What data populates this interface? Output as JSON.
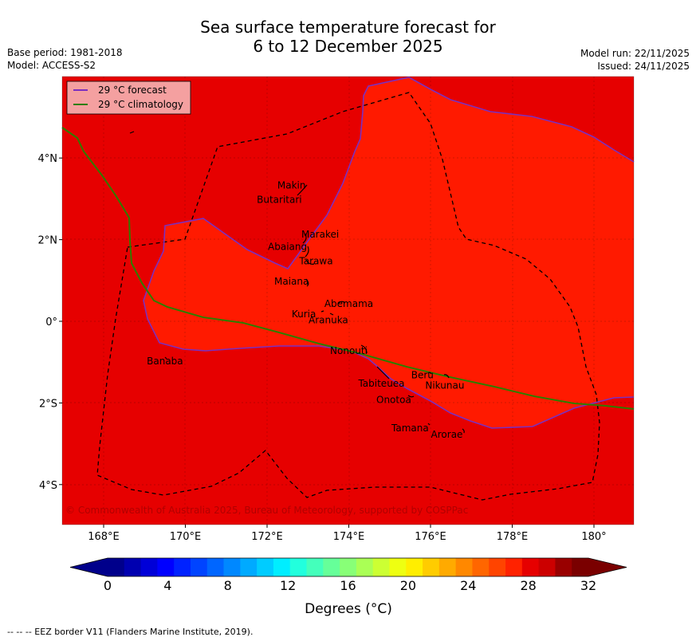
{
  "title_line1": "Sea surface temperature forecast for",
  "title_line2": "6 to 12 December 2025",
  "meta": {
    "base_period": "Base period: 1981-2018",
    "model": "Model: ACCESS-S2",
    "model_run": "Model run: 22/11/2025",
    "issued": "Issued: 24/11/2025"
  },
  "legend": {
    "forecast": "29 °C  forecast",
    "climatology": "29 °C  climatology"
  },
  "colors": {
    "warm_fill": "#e60000",
    "hot_fill": "#ff1a00",
    "forecast_line": "#7b2fbf",
    "climatology_line": "#2e7d00"
  },
  "x_ticks": [
    "168°E",
    "170°E",
    "172°E",
    "174°E",
    "176°E",
    "178°E",
    "180°"
  ],
  "y_ticks": [
    "4°N",
    "2°N",
    "0°",
    "2°S",
    "4°S"
  ],
  "places": [
    {
      "name": "Makin",
      "lon": 172.6,
      "lat": 3.25
    },
    {
      "name": "Butaritari",
      "lon": 172.3,
      "lat": 2.9
    },
    {
      "name": "Marakei",
      "lon": 173.3,
      "lat": 2.05
    },
    {
      "name": "Abaiang",
      "lon": 172.5,
      "lat": 1.75
    },
    {
      "name": "Tarawa",
      "lon": 173.2,
      "lat": 1.4
    },
    {
      "name": "Maiana",
      "lon": 172.6,
      "lat": 0.9
    },
    {
      "name": "Abemama",
      "lon": 174.0,
      "lat": 0.35
    },
    {
      "name": "Kuria",
      "lon": 172.9,
      "lat": 0.1
    },
    {
      "name": "Aranuka",
      "lon": 173.5,
      "lat": -0.05
    },
    {
      "name": "Nonouti",
      "lon": 174.0,
      "lat": -0.8
    },
    {
      "name": "Banaba",
      "lon": 169.5,
      "lat": -1.05
    },
    {
      "name": "Beru",
      "lon": 175.8,
      "lat": -1.4
    },
    {
      "name": "Tabiteuea",
      "lon": 174.8,
      "lat": -1.6
    },
    {
      "name": "Nikunau",
      "lon": 176.35,
      "lat": -1.65
    },
    {
      "name": "Onotoa",
      "lon": 175.1,
      "lat": -2.0
    },
    {
      "name": "Tamana",
      "lon": 175.5,
      "lat": -2.7
    },
    {
      "name": "Arorae",
      "lon": 176.4,
      "lat": -2.85
    }
  ],
  "copyright": "© Commonwealth of Australia 2025, Bureau of Meteorology, supported by COSPPac",
  "colorbar": {
    "tick_values": [
      "0",
      "4",
      "8",
      "12",
      "16",
      "20",
      "24",
      "28",
      "32"
    ],
    "title": "Degrees (°C)",
    "colors": [
      "#00008b",
      "#0000b0",
      "#0000d8",
      "#0000ff",
      "#0022ff",
      "#0044ff",
      "#0066ff",
      "#0088ff",
      "#00aaff",
      "#00ccff",
      "#00eeff",
      "#22ffdd",
      "#44ffbb",
      "#66ff99",
      "#88ff77",
      "#aaff55",
      "#ccff33",
      "#eeff11",
      "#ffee00",
      "#ffcc00",
      "#ffaa00",
      "#ff8800",
      "#ff6600",
      "#ff4400",
      "#ff2200",
      "#e60000",
      "#cc0000",
      "#990000",
      "#7a0000"
    ],
    "under_color": "#00008b",
    "over_color": "#7a0000"
  },
  "footer": "--  --  -- EEZ border V11 (Flanders Marine Institute, 2019)."
}
